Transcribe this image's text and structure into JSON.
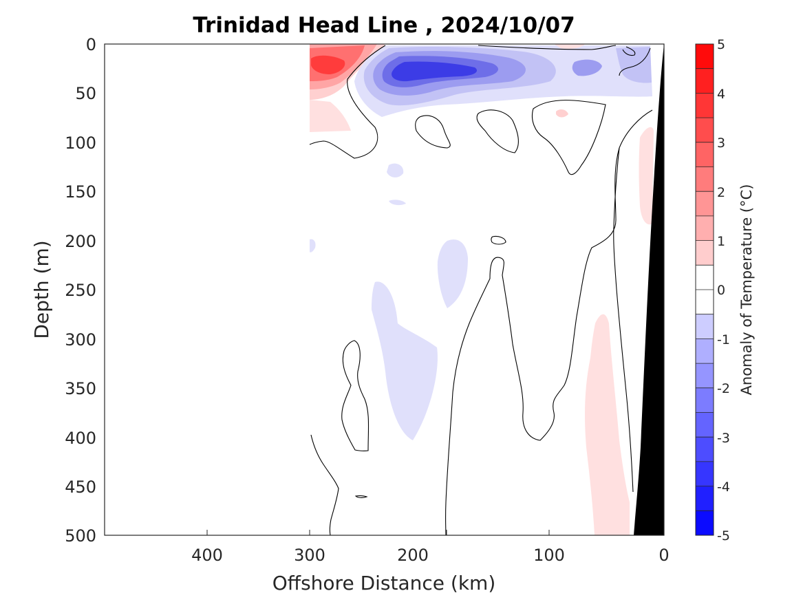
{
  "chart_data": {
    "type": "heatmap",
    "title": "Trinidad Head Line , 2024/10/07",
    "xlabel": "Offshore Distance (km)",
    "ylabel": "Depth (m)",
    "xlim": [
      490,
      0
    ],
    "ylim": [
      0,
      500
    ],
    "x_reversed": true,
    "y_reversed": true,
    "x_ticks": [
      "400",
      "300",
      "200",
      "100",
      "0"
    ],
    "y_ticks": [
      "0",
      "50",
      "100",
      "150",
      "200",
      "250",
      "300",
      "350",
      "400",
      "450",
      "500"
    ],
    "colorbar": {
      "label": "Anomaly of Temperature (°C)",
      "range": [
        -5,
        5
      ],
      "step": 0.5,
      "ticks": [
        "5",
        "4",
        "3",
        "2",
        "1",
        "0",
        "-1",
        "-2",
        "-3",
        "-4",
        "-5"
      ]
    },
    "data_extent_km": [
      310,
      0
    ],
    "contour_levels": [
      0
    ],
    "features": [
      {
        "name": "warm core",
        "value": 3.5,
        "x_km": 285,
        "depth_m": 25
      },
      {
        "name": "cold core",
        "value": -4.0,
        "x_km": 205,
        "depth_m": 30
      },
      {
        "name": "cold patch",
        "value": -1.5,
        "x_km": 80,
        "depth_m": 25
      },
      {
        "name": "deep cool patch",
        "value": -0.7,
        "x_km": 235,
        "depth_m": 350
      },
      {
        "name": "nearshore warm band",
        "value": 0.7,
        "x_km": 55,
        "depth_m": 400
      },
      {
        "name": "seafloor",
        "value": null,
        "x_km": 10,
        "depth_m": 250
      }
    ],
    "grid": false
  },
  "colors": {
    "warm_max": "#ff0000",
    "cold_max": "#0000ff",
    "neutral": "#ffffff",
    "land": "#000000"
  }
}
